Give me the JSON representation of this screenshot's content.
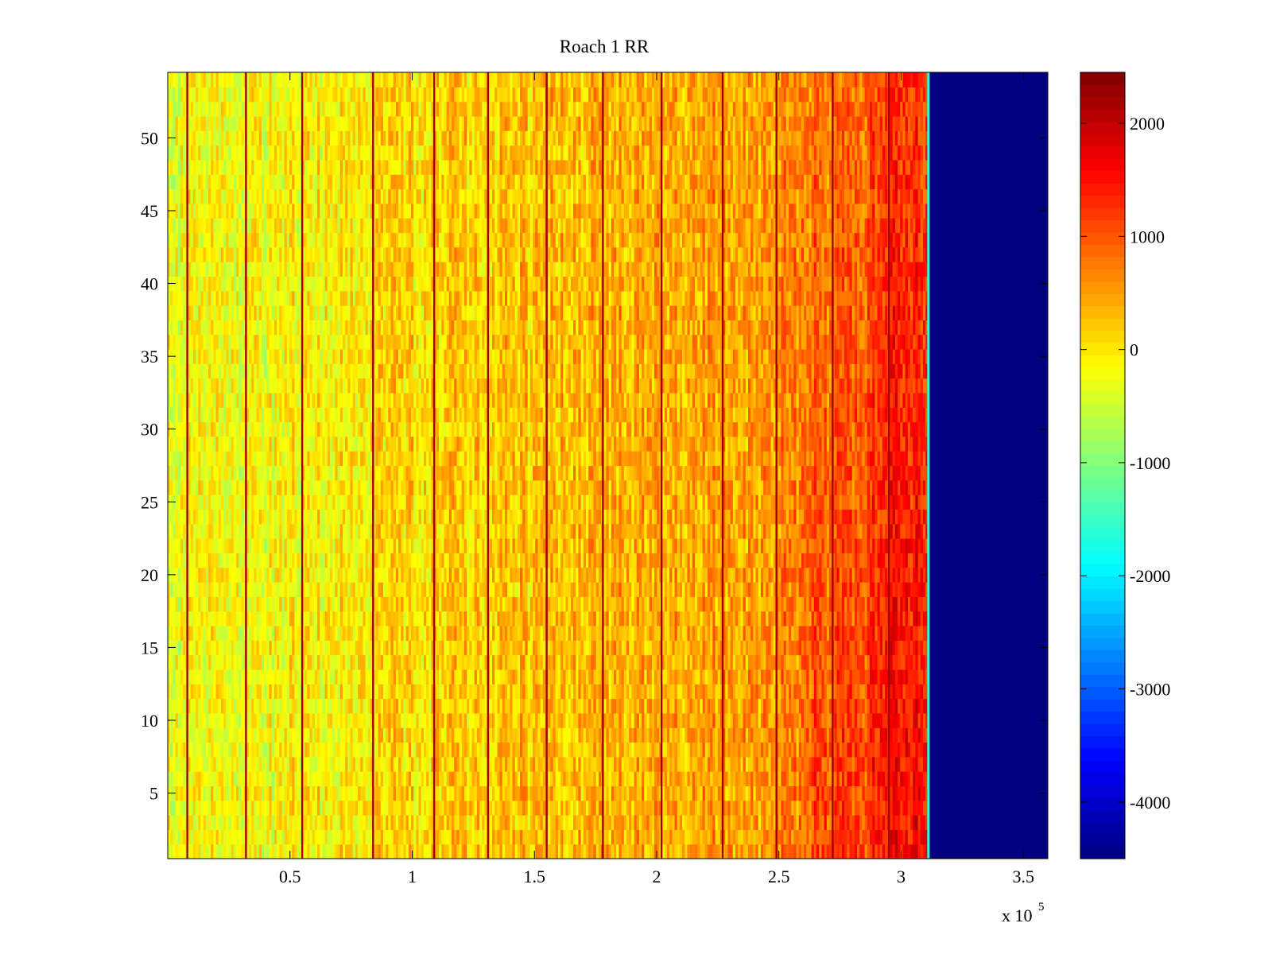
{
  "chart_data": {
    "type": "heatmap",
    "title": "Roach 1 RR",
    "xlabel": "",
    "ylabel": "",
    "x_multiplier_label": "x 10",
    "x_multiplier_exponent": "5",
    "xlim": [
      0,
      3.6
    ],
    "ylim": [
      0.5,
      54.5
    ],
    "x_ticks": [
      0.5,
      1,
      1.5,
      2,
      2.5,
      3,
      3.5
    ],
    "x_tick_labels": [
      "0.5",
      "1",
      "1.5",
      "2",
      "2.5",
      "3",
      "3.5"
    ],
    "y_ticks": [
      5,
      10,
      15,
      20,
      25,
      30,
      35,
      40,
      45,
      50
    ],
    "y_tick_labels": [
      "5",
      "10",
      "15",
      "20",
      "25",
      "30",
      "35",
      "40",
      "45",
      "50"
    ],
    "colorbar": {
      "colormap": "jet",
      "clim": [
        -4500,
        2450
      ],
      "ticks": [
        2000,
        1000,
        0,
        -1000,
        -2000,
        -3000,
        -4000
      ],
      "tick_labels": [
        "2000",
        "1000",
        "0",
        "-1000",
        "-2000",
        "-3000",
        "-4000"
      ]
    },
    "rows": 54,
    "data_end_x": 3.11,
    "fill_value_after_end": -4500,
    "value_trend": {
      "x": [
        0,
        0.5,
        1.0,
        1.5,
        2.0,
        2.5,
        2.8,
        3.0,
        3.1
      ],
      "mean_value": [
        -300,
        -150,
        80,
        250,
        420,
        600,
        850,
        1200,
        1300
      ]
    },
    "bright_vertical_lines_x": [
      0.08,
      0.32,
      0.55,
      0.84,
      1.09,
      1.31,
      1.55,
      1.78,
      2.02,
      2.27,
      2.49,
      2.72,
      2.95
    ],
    "grid": false
  }
}
